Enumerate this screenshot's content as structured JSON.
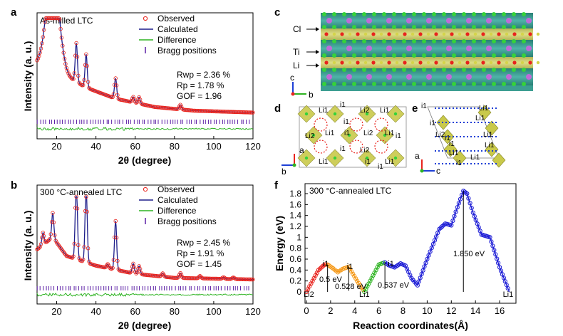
{
  "panels": {
    "a": {
      "letter": "a",
      "label": "As-milled LTC"
    },
    "b": {
      "letter": "b",
      "label": "300 °C-annealed LTC"
    },
    "c": {
      "letter": "c"
    },
    "d": {
      "letter": "d"
    },
    "e": {
      "letter": "e"
    },
    "f": {
      "letter": "f",
      "label": "300 °C-annealed LTC"
    }
  },
  "chart_data": [
    {
      "id": "a",
      "type": "line",
      "title": "As-milled LTC",
      "xlabel": "2θ (degree)",
      "ylabel": "Intensity (a. u.)",
      "xlim": [
        10,
        120
      ],
      "xticks": [
        20,
        40,
        60,
        80,
        100,
        120
      ],
      "legend": [
        "Observed",
        "Calculated",
        "Difference",
        "Bragg positions"
      ],
      "legend_position": "top-right",
      "stats": [
        "Rwp = 2.36 %",
        "Rp = 1.78 %",
        "GOF = 1.96"
      ],
      "peaks_2theta": [
        18,
        30,
        35,
        50,
        59,
        62,
        83
      ],
      "peak_heights": [
        1.0,
        0.42,
        0.36,
        0.22,
        0.06,
        0.07,
        0.05
      ],
      "background": [
        [
          10,
          0.55
        ],
        [
          18,
          0.55
        ],
        [
          25,
          0.42
        ],
        [
          35,
          0.3
        ],
        [
          50,
          0.18
        ],
        [
          70,
          0.09
        ],
        [
          90,
          0.05
        ],
        [
          120,
          0.03
        ]
      ]
    },
    {
      "id": "b",
      "type": "line",
      "title": "300 °C-annealed LTC",
      "xlabel": "2θ (degree)",
      "ylabel": "Intensity (a. u.)",
      "xlim": [
        10,
        120
      ],
      "xticks": [
        20,
        40,
        60,
        80,
        100,
        120
      ],
      "legend": [
        "Observed",
        "Calculated",
        "Difference",
        "Bragg positions"
      ],
      "legend_position": "top-right",
      "stats": [
        "Rwp = 2.45 %",
        "Rp = 1.91 %",
        "GOF = 1.45"
      ],
      "peaks_2theta": [
        13,
        18,
        30,
        35,
        46,
        50,
        59,
        62,
        74,
        83,
        93,
        105,
        110
      ],
      "peak_heights": [
        0.15,
        0.3,
        0.95,
        0.95,
        0.05,
        0.6,
        0.12,
        0.1,
        0.04,
        0.06,
        0.03,
        0.02,
        0.02
      ],
      "background": [
        [
          10,
          0.4
        ],
        [
          18,
          0.55
        ],
        [
          25,
          0.32
        ],
        [
          40,
          0.2
        ],
        [
          60,
          0.1
        ],
        [
          80,
          0.05
        ],
        [
          120,
          0.03
        ]
      ]
    },
    {
      "id": "f",
      "type": "line",
      "title": "300 °C-annealed LTC",
      "xlabel": "Reaction coordinates(Å)",
      "ylabel": "Energy (eV)",
      "xlim": [
        0,
        17
      ],
      "ylim": [
        0,
        1.9
      ],
      "xticks": [
        0,
        2,
        4,
        6,
        8,
        10,
        12,
        14,
        16
      ],
      "yticks": [
        0.0,
        0.2,
        0.4,
        0.6,
        0.8,
        1.0,
        1.2,
        1.4,
        1.6,
        1.8
      ],
      "series": [
        {
          "name": "Li2→i1",
          "color": "#e8231d",
          "x": [
            0,
            0.5,
            1.0,
            1.5,
            1.75
          ],
          "y": [
            0.0,
            0.2,
            0.4,
            0.5,
            0.5
          ]
        },
        {
          "name": "i1→Li1",
          "color": "#f59a1b",
          "x": [
            1.75,
            2.2,
            2.6,
            3.0,
            3.5,
            4.2,
            4.8
          ],
          "y": [
            0.5,
            0.43,
            0.36,
            0.42,
            0.46,
            0.2,
            0.0
          ]
        },
        {
          "name": "Li1→i1",
          "color": "#2db321",
          "x": [
            4.8,
            5.4,
            6.0,
            6.5
          ],
          "y": [
            0.0,
            0.25,
            0.5,
            0.54
          ]
        },
        {
          "name": "i1→Li1",
          "color": "#1d1dd6",
          "x": [
            6.5,
            6.8,
            7.3,
            7.8,
            8.2,
            8.7,
            9.2,
            10.0,
            11.0,
            11.5,
            12.0,
            12.5,
            13.0,
            13.3,
            13.8,
            14.5,
            15.2,
            16.0,
            16.8
          ],
          "y": [
            0.54,
            0.49,
            0.45,
            0.52,
            0.48,
            0.25,
            0.12,
            0.6,
            1.15,
            1.25,
            1.22,
            1.55,
            1.85,
            1.8,
            1.45,
            1.05,
            1.0,
            0.45,
            0.0
          ]
        }
      ],
      "annotations": [
        "0.5 eV",
        "0.528 eV",
        "0.537 eV",
        "1.850 eV"
      ],
      "site_labels": [
        "Li2",
        "i1",
        "Li1",
        "i1",
        "i1",
        "Li1"
      ]
    }
  ],
  "structure_labels": {
    "cl": "Cl",
    "ti": "Ti",
    "li": "Li",
    "axis_c": "c",
    "axis_b": "b",
    "axis_a": "a",
    "d_sites": [
      "Li1",
      "i1",
      "Li2",
      "Li1",
      "i1",
      "Li2",
      "Li1",
      "i1",
      "Li2",
      "Li1",
      "i1",
      "Li1",
      "i1",
      "i1",
      "Li2",
      "Li1",
      "i1"
    ],
    "e_sites": [
      "i1",
      "Li1",
      "Li1",
      "i1",
      "Li2",
      "i1",
      "Li1",
      "Li1",
      "i1",
      "Li1",
      "Li1",
      "i1"
    ]
  }
}
